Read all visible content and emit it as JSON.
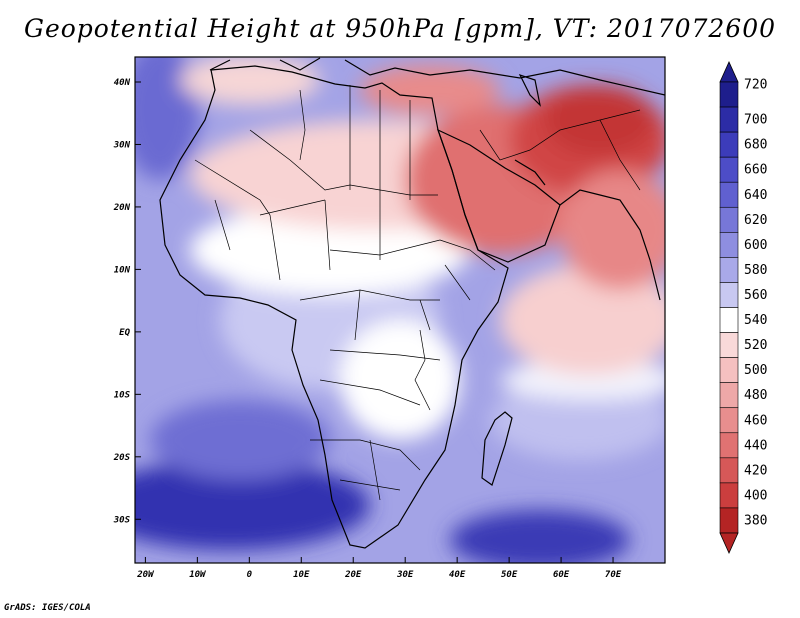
{
  "title": "Geopotential Height at 950hPa [gpm], VT: 2017072600",
  "credit": "GrADS: IGES/COLA",
  "map": {
    "lat_labels": [
      "40N",
      "30N",
      "20N",
      "10N",
      "EQ",
      "10S",
      "20S",
      "30S"
    ],
    "lon_labels": [
      "20W",
      "10W",
      "0",
      "10E",
      "20E",
      "30E",
      "40E",
      "50E",
      "60E",
      "70E"
    ],
    "lat_range": [
      -37,
      44
    ],
    "lon_range": [
      -22,
      80
    ]
  },
  "colorbar": {
    "levels": [
      "720",
      "700",
      "680",
      "660",
      "640",
      "620",
      "600",
      "580",
      "560",
      "540",
      "520",
      "500",
      "480",
      "460",
      "440",
      "420",
      "400",
      "380"
    ],
    "colors": [
      "#1e1e8c",
      "#2c2ca6",
      "#3c3cba",
      "#4d4dc7",
      "#6060d0",
      "#7777d8",
      "#8e8ee0",
      "#a9a9e9",
      "#c8c8f1",
      "#ffffff",
      "#f9d9d9",
      "#f5c0c0",
      "#eea8a8",
      "#e88e8e",
      "#e07272",
      "#d65858",
      "#cb3e3e",
      "#b42424"
    ]
  }
}
